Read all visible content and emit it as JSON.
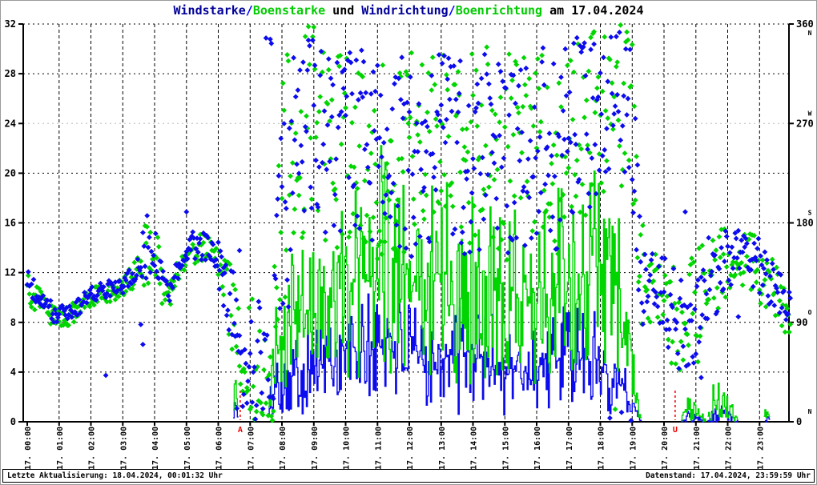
{
  "title": {
    "segments": [
      {
        "text": "Windstarke",
        "color": "#000099"
      },
      {
        "text": "/",
        "color": "#0000ff"
      },
      {
        "text": "Boenstarke",
        "color": "#00cc00"
      },
      {
        "text": " und ",
        "color": "#000000"
      },
      {
        "text": "Windrichtung",
        "color": "#000099"
      },
      {
        "text": "/",
        "color": "#0000ff"
      },
      {
        "text": "Boenrichtung",
        "color": "#00cc00"
      },
      {
        "text": " am 17.04.2024",
        "color": "#000000"
      }
    ],
    "full_text": "Windstarke/Boenstarke und Windrichtung/Boenrichtung am 17.04.2024"
  },
  "status_bar": {
    "left": "Letzte Aktualisierung: 18.04.2024, 00:01:32 Uhr",
    "right": "Datenstand: 17.04.2024, 23:59:59 Uhr"
  },
  "chart_data": {
    "type": "scatter",
    "subtype": "dual-axis time series: step-lines for wind/gust speed (left axis), diamond scatter for wind/gust direction (right axis)",
    "title": "Windstarke/Boenstarke und Windrichtung/Boenrichtung am 17.04.2024",
    "date": "17.04.2024",
    "grid": {
      "vertical": "hourly dashed",
      "horizontal": "every 4 units dotted",
      "gray_line_at_deg": 270
    },
    "x_axis": {
      "range_hours": [
        0,
        24
      ],
      "tick_labels": [
        "17. 00:00",
        "17. 01:00",
        "17. 02:00",
        "17. 03:00",
        "17. 04:00",
        "17. 05:00",
        "17. 06:00",
        "17. 07:00",
        "17. 08:00",
        "17. 09:00",
        "17. 10:00",
        "17. 11:00",
        "17. 12:00",
        "17. 13:00",
        "17. 14:00",
        "17. 15:00",
        "17. 16:00",
        "17. 17:00",
        "17. 18:00",
        "17. 19:00",
        "17. 20:00",
        "17. 21:00",
        "17. 22:00",
        "17. 23:00"
      ]
    },
    "y_left": {
      "range": [
        0,
        32
      ],
      "ticks": [
        0,
        4,
        8,
        12,
        16,
        20,
        24,
        28,
        32
      ]
    },
    "y_right": {
      "range": [
        0,
        360
      ],
      "ticks": [
        {
          "deg": 0,
          "label": "0",
          "compass": "N"
        },
        {
          "deg": 90,
          "label": "90",
          "compass": "O"
        },
        {
          "deg": 180,
          "label": "180",
          "compass": "S"
        },
        {
          "deg": 270,
          "label": "270",
          "compass": "W"
        },
        {
          "deg": 360,
          "label": "360",
          "compass": "N"
        }
      ]
    },
    "sun_markers": [
      {
        "label": "A",
        "hour": 6.69
      },
      {
        "label": "U",
        "hour": 20.35
      }
    ],
    "colors": {
      "wind": "#0b0bee",
      "gust": "#00d500",
      "grid": "#000000",
      "grid_gray": "#bbbbbb",
      "axis": "#000000",
      "sun_marker": "#ee0000"
    },
    "sampling_minutes": 2,
    "note": "Series stored as keyframes [minute, center, spread] read off the plot; rendered by interpolation with bounded jitter to reproduce the dense per-minute measurements.",
    "series": [
      {
        "name": "Windstarke",
        "kind": "step-line",
        "axis": "left",
        "color": "wind",
        "keyframes": [
          [
            0,
            0,
            0
          ],
          [
            386,
            0,
            0
          ],
          [
            391,
            1.5,
            1.2
          ],
          [
            398,
            0,
            0
          ],
          [
            452,
            0,
            0
          ],
          [
            458,
            1.5,
            1.5
          ],
          [
            468,
            3,
            2.5
          ],
          [
            480,
            3.5,
            3
          ],
          [
            510,
            4,
            3.5
          ],
          [
            540,
            4.5,
            3.5
          ],
          [
            570,
            5,
            4
          ],
          [
            600,
            5.5,
            4.5
          ],
          [
            630,
            5.5,
            4.5
          ],
          [
            660,
            6,
            5
          ],
          [
            675,
            7,
            5.5
          ],
          [
            693,
            6.5,
            5
          ],
          [
            720,
            5,
            4.5
          ],
          [
            750,
            5,
            4
          ],
          [
            780,
            5.5,
            4.5
          ],
          [
            810,
            5,
            4.5
          ],
          [
            840,
            5.5,
            4.5
          ],
          [
            870,
            5,
            4
          ],
          [
            900,
            4.5,
            4
          ],
          [
            930,
            4,
            3.5
          ],
          [
            960,
            4.5,
            4
          ],
          [
            990,
            5,
            4
          ],
          [
            1020,
            5,
            4.5
          ],
          [
            1050,
            5,
            4.5
          ],
          [
            1080,
            5,
            4.5
          ],
          [
            1100,
            4,
            3.5
          ],
          [
            1125,
            2.5,
            2
          ],
          [
            1145,
            1,
            1
          ],
          [
            1158,
            0,
            0
          ],
          [
            1230,
            0,
            0
          ],
          [
            1242,
            0.4,
            0.5
          ],
          [
            1262,
            0.3,
            0.4
          ],
          [
            1280,
            0,
            0
          ],
          [
            1292,
            0.6,
            0.7
          ],
          [
            1310,
            0.7,
            0.8
          ],
          [
            1328,
            0.4,
            0.5
          ],
          [
            1340,
            0,
            0
          ],
          [
            1388,
            0,
            0
          ],
          [
            1394,
            0.4,
            0.5
          ],
          [
            1400,
            0,
            0
          ],
          [
            1439,
            0,
            0
          ]
        ]
      },
      {
        "name": "Boenstarke",
        "kind": "step-line",
        "axis": "left",
        "color": "gust",
        "keyframes": [
          [
            0,
            0,
            0
          ],
          [
            386,
            0,
            0
          ],
          [
            391,
            3.2,
            1.4
          ],
          [
            398,
            0,
            0
          ],
          [
            452,
            0,
            0
          ],
          [
            458,
            3,
            2.5
          ],
          [
            468,
            6,
            4
          ],
          [
            480,
            7,
            5
          ],
          [
            510,
            8.5,
            6
          ],
          [
            540,
            9,
            6.5
          ],
          [
            570,
            10,
            7
          ],
          [
            600,
            11,
            7.5
          ],
          [
            630,
            11.5,
            8
          ],
          [
            660,
            12,
            8.5
          ],
          [
            675,
            14,
            11
          ],
          [
            693,
            12.5,
            9
          ],
          [
            720,
            11,
            8
          ],
          [
            750,
            11.5,
            8
          ],
          [
            780,
            12,
            8.5
          ],
          [
            810,
            11,
            8
          ],
          [
            840,
            11.5,
            8.5
          ],
          [
            870,
            11.5,
            8
          ],
          [
            900,
            11,
            7.5
          ],
          [
            930,
            10,
            7
          ],
          [
            960,
            10.5,
            7.5
          ],
          [
            990,
            11,
            7.5
          ],
          [
            1020,
            11.5,
            8
          ],
          [
            1050,
            12,
            8.5
          ],
          [
            1080,
            12.5,
            9
          ],
          [
            1095,
            13.5,
            9.5
          ],
          [
            1110,
            11,
            8
          ],
          [
            1125,
            6,
            4.5
          ],
          [
            1145,
            3,
            2.5
          ],
          [
            1158,
            0,
            0
          ],
          [
            1230,
            0,
            0
          ],
          [
            1240,
            1,
            1
          ],
          [
            1258,
            0.8,
            1
          ],
          [
            1280,
            0,
            0
          ],
          [
            1290,
            1.6,
            1.6
          ],
          [
            1308,
            2,
            1.8
          ],
          [
            1326,
            1.2,
            1.2
          ],
          [
            1340,
            0,
            0
          ],
          [
            1386,
            0,
            0
          ],
          [
            1392,
            1.2,
            1
          ],
          [
            1400,
            0,
            0
          ],
          [
            1439,
            0,
            0
          ]
        ]
      },
      {
        "name": "Boenrichtung",
        "kind": "diamond-scatter",
        "axis": "right",
        "color": "gust",
        "keyframes": [
          [
            0,
            120,
            14
          ],
          [
            30,
            108,
            12
          ],
          [
            50,
            95,
            10
          ],
          [
            90,
            98,
            10
          ],
          [
            120,
            114,
            10
          ],
          [
            180,
            120,
            9
          ],
          [
            205,
            135,
            14
          ],
          [
            225,
            152,
            35
          ],
          [
            245,
            148,
            32
          ],
          [
            258,
            112,
            17
          ],
          [
            272,
            120,
            12
          ],
          [
            288,
            138,
            17
          ],
          [
            310,
            158,
            15
          ],
          [
            340,
            156,
            14
          ],
          [
            365,
            145,
            16
          ],
          [
            388,
            92,
            48
          ],
          [
            405,
            48,
            38
          ],
          [
            420,
            62,
            58
          ],
          [
            440,
            58,
            62
          ],
          [
            460,
            18,
            44
          ],
          [
            480,
            205,
            135
          ],
          [
            510,
            252,
            105
          ],
          [
            540,
            268,
            95
          ],
          [
            570,
            248,
            98
          ],
          [
            600,
            252,
            95
          ],
          [
            630,
            248,
            98
          ],
          [
            660,
            238,
            95
          ],
          [
            690,
            248,
            92
          ],
          [
            720,
            238,
            98
          ],
          [
            750,
            252,
            92
          ],
          [
            780,
            248,
            95
          ],
          [
            810,
            238,
            95
          ],
          [
            840,
            242,
            98
          ],
          [
            870,
            252,
            92
          ],
          [
            900,
            242,
            95
          ],
          [
            930,
            238,
            98
          ],
          [
            960,
            248,
            95
          ],
          [
            990,
            242,
            98
          ],
          [
            1020,
            258,
            92
          ],
          [
            1050,
            268,
            88
          ],
          [
            1080,
            282,
            84
          ],
          [
            1110,
            298,
            75
          ],
          [
            1140,
            282,
            88
          ],
          [
            1152,
            148,
            75
          ],
          [
            1170,
            118,
            40
          ],
          [
            1200,
            108,
            48
          ],
          [
            1230,
            88,
            48
          ],
          [
            1260,
            98,
            55
          ],
          [
            1290,
            128,
            48
          ],
          [
            1320,
            148,
            32
          ],
          [
            1350,
            148,
            26
          ],
          [
            1380,
            138,
            30
          ],
          [
            1410,
            118,
            28
          ],
          [
            1439,
            98,
            25
          ]
        ]
      },
      {
        "name": "Windrichtung",
        "kind": "diamond-scatter",
        "axis": "right",
        "color": "wind",
        "keyframes": [
          [
            0,
            125,
            12
          ],
          [
            30,
            112,
            10
          ],
          [
            50,
            98,
            8
          ],
          [
            90,
            100,
            8
          ],
          [
            120,
            117,
            8
          ],
          [
            180,
            123,
            7
          ],
          [
            205,
            138,
            12
          ],
          [
            225,
            155,
            32
          ],
          [
            245,
            150,
            30
          ],
          [
            258,
            115,
            15
          ],
          [
            272,
            122,
            10
          ],
          [
            288,
            140,
            15
          ],
          [
            310,
            160,
            13
          ],
          [
            340,
            158,
            12
          ],
          [
            365,
            147,
            14
          ],
          [
            388,
            95,
            45
          ],
          [
            405,
            45,
            35
          ],
          [
            420,
            60,
            55
          ],
          [
            440,
            55,
            60
          ],
          [
            460,
            15,
            40
          ],
          [
            480,
            200,
            130
          ],
          [
            510,
            250,
            100
          ],
          [
            540,
            270,
            90
          ],
          [
            570,
            245,
            95
          ],
          [
            600,
            255,
            90
          ],
          [
            630,
            250,
            95
          ],
          [
            660,
            235,
            90
          ],
          [
            690,
            245,
            90
          ],
          [
            720,
            235,
            95
          ],
          [
            750,
            250,
            90
          ],
          [
            780,
            250,
            90
          ],
          [
            810,
            235,
            90
          ],
          [
            840,
            240,
            95
          ],
          [
            870,
            250,
            90
          ],
          [
            900,
            240,
            90
          ],
          [
            930,
            235,
            95
          ],
          [
            960,
            250,
            90
          ],
          [
            990,
            245,
            95
          ],
          [
            1020,
            260,
            90
          ],
          [
            1050,
            270,
            85
          ],
          [
            1080,
            285,
            80
          ],
          [
            1110,
            300,
            70
          ],
          [
            1140,
            285,
            85
          ],
          [
            1152,
            150,
            70
          ],
          [
            1170,
            120,
            35
          ],
          [
            1200,
            110,
            45
          ],
          [
            1230,
            90,
            45
          ],
          [
            1260,
            100,
            50
          ],
          [
            1290,
            130,
            45
          ],
          [
            1320,
            150,
            28
          ],
          [
            1350,
            150,
            22
          ],
          [
            1380,
            140,
            26
          ],
          [
            1410,
            120,
            25
          ],
          [
            1439,
            100,
            22
          ]
        ],
        "outliers": [
          [
            148,
            42
          ],
          [
            214,
            88
          ],
          [
            218,
            70
          ],
          [
            300,
            190
          ],
          [
            362,
            120
          ],
          [
            370,
            105
          ],
          [
            395,
            12
          ],
          [
            400,
            155
          ],
          [
            1240,
            190
          ],
          [
            1270,
            40
          ],
          [
            1340,
            95
          ]
        ]
      }
    ]
  }
}
